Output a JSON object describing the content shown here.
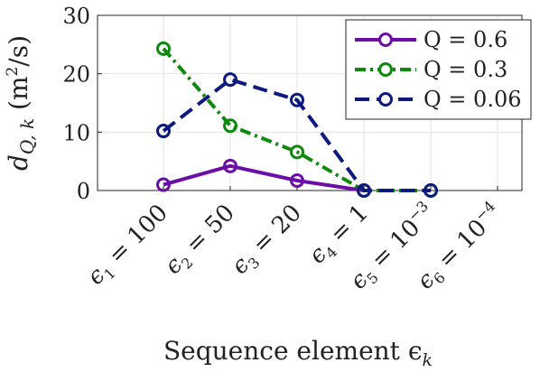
{
  "chart_data": {
    "type": "line",
    "xlabel": "Sequence element ϵ",
    "xlabel_sub": "k",
    "ylabel": {
      "main": "d",
      "sub": "Q, k",
      "unit_open": " (m",
      "unit_sup": "2",
      "unit_close": "/s)"
    },
    "ylim": [
      0,
      30
    ],
    "yticks": [
      "0",
      "10",
      "20",
      "30"
    ],
    "categories": [
      {
        "sym": "ϵ",
        "sub": "1",
        "rest": " = 100",
        "sup": ""
      },
      {
        "sym": "ϵ",
        "sub": "2",
        "rest": " = 50",
        "sup": ""
      },
      {
        "sym": "ϵ",
        "sub": "3",
        "rest": " = 20",
        "sup": ""
      },
      {
        "sym": "ϵ",
        "sub": "4",
        "rest": " = 1",
        "sup": ""
      },
      {
        "sym": "ϵ",
        "sub": "5",
        "rest": " = 10",
        "sup": "−3"
      },
      {
        "sym": "ϵ",
        "sub": "6",
        "rest": " = 10",
        "sup": "−4"
      }
    ],
    "series": [
      {
        "name": "Q = 0.6",
        "color": "#6a0ea6",
        "dash": "solid",
        "values": [
          1.0,
          4.2,
          1.7,
          0,
          null,
          null
        ]
      },
      {
        "name": "Q = 0.3",
        "color": "#0d8a0d",
        "dash": "dashdot",
        "values": [
          24.3,
          11.1,
          6.6,
          0,
          0,
          null
        ]
      },
      {
        "name": "Q = 0.06",
        "color": "#0c1a80",
        "dash": "dashed",
        "values": [
          10.2,
          19.0,
          15.5,
          0,
          0,
          null
        ]
      }
    ],
    "grid": true,
    "legend_position": "top-right"
  }
}
